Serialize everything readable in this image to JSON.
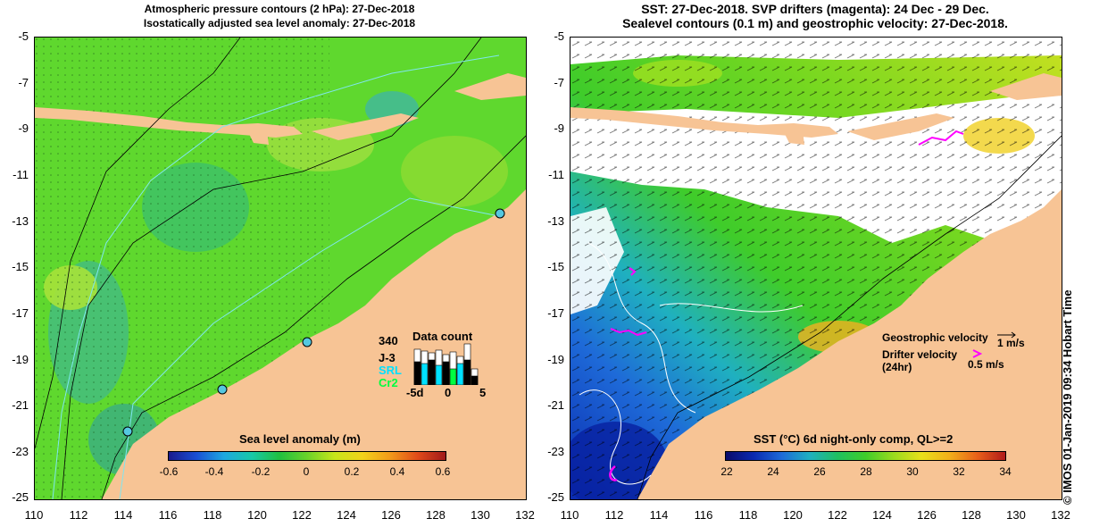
{
  "left_panel": {
    "title_line1": "Atmospheric pressure contours (2 hPa): 27-Dec-2018",
    "title_line2": "Isostatically adjusted sea level anomaly: 27-Dec-2018",
    "colorbar_title": "Sea level anomaly (m)",
    "colorbar_labels": [
      "-0.6",
      "-0.4",
      "-0.2",
      "0",
      "0.2",
      "0.4",
      "0.6"
    ],
    "data_count": {
      "title": "Data count",
      "max_label": "340",
      "series": [
        "J-3",
        "SRL",
        "Cr2"
      ],
      "series_colors": [
        "#000000",
        "#00e0ff",
        "#00ff40"
      ],
      "x_ticks": [
        "-5d",
        "0",
        "5"
      ]
    }
  },
  "right_panel": {
    "title_line1": "SST: 27-Dec-2018. SVP drifters (magenta): 24 Dec - 29 Dec.",
    "title_line2": "Sealevel contours (0.1 m) and geostrophic velocity: 27-Dec-2018.",
    "colorbar_title": "SST (°C) 6d night-only comp, QL>=2",
    "colorbar_labels": [
      "22",
      "24",
      "26",
      "28",
      "30",
      "32",
      "34"
    ],
    "legend": {
      "geostrophic_label": "Geostrophic velocity",
      "geostrophic_scale": "1 m/s",
      "drifter_label": "Drifter velocity",
      "drifter_sub": "(24hr)",
      "drifter_scale": "0.5 m/s"
    }
  },
  "axes": {
    "lat_ticks": [
      "-5",
      "-7",
      "-9",
      "-11",
      "-13",
      "-15",
      "-17",
      "-19",
      "-21",
      "-23",
      "-25"
    ],
    "lon_ticks": [
      "110",
      "112",
      "114",
      "116",
      "118",
      "120",
      "122",
      "124",
      "126",
      "128",
      "130",
      "132"
    ]
  },
  "credit": "© IMOS 01-Jan-2019 09:34 Hobart Time",
  "colors": {
    "land": "#f7c495",
    "sla_green": "#5fd82e",
    "sst_green": "#3fcc2a",
    "drifter": "#ff00ff",
    "no_data": "#ffffff"
  }
}
